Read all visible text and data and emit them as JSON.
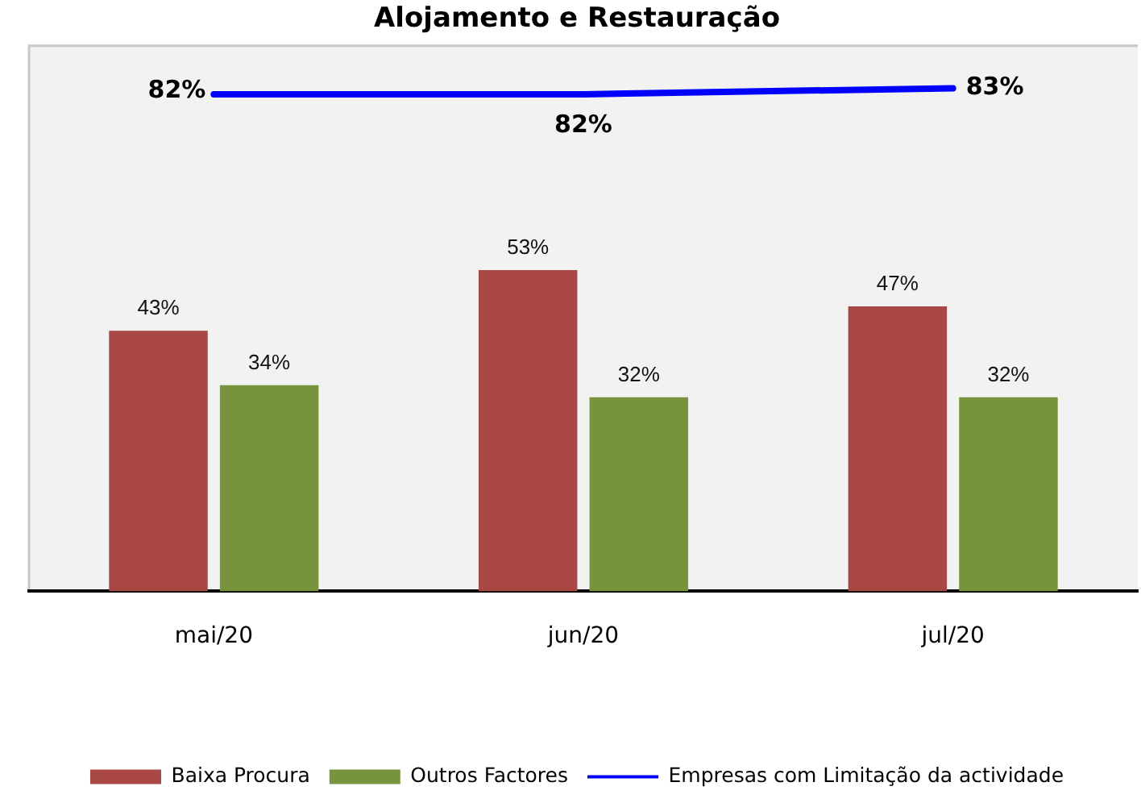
{
  "chart_data": {
    "type": "bar",
    "title": "Alojamento e Restauração",
    "categories": [
      "mai/20",
      "jun/20",
      "jul/20"
    ],
    "series": [
      {
        "name": "Baixa Procura",
        "color": "#a94744",
        "values": [
          43,
          53,
          47
        ],
        "value_labels": [
          "43%",
          "53%",
          "47%"
        ]
      },
      {
        "name": "Outros Factores",
        "color": "#77933c",
        "values": [
          34,
          32,
          32
        ],
        "value_labels": [
          "34%",
          "32%",
          "32%"
        ]
      },
      {
        "name": "Empresas com Limitação da actividade",
        "type": "line",
        "color": "#0000ff",
        "values": [
          82,
          82,
          83
        ],
        "value_labels": [
          "82%",
          "82%",
          "83%"
        ]
      }
    ],
    "marker": "none",
    "legend": "bottom",
    "grid": false,
    "tick_labels": "x"
  }
}
